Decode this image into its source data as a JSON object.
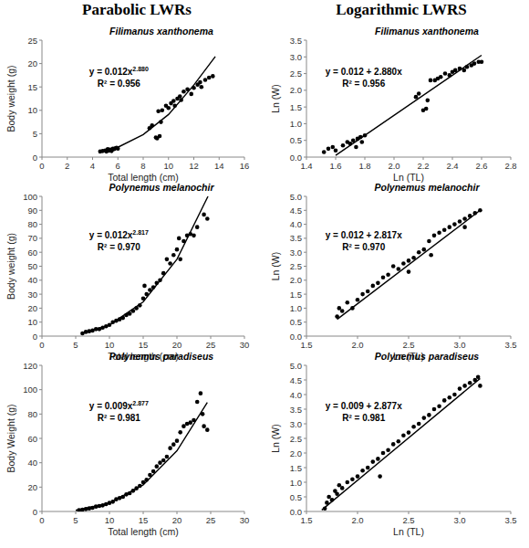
{
  "column_titles": [
    "Parabolic LWRs",
    "Logarithmic LWRS"
  ],
  "chart_data": [
    {
      "type": "scatter",
      "title": "Filimanus xanthonema",
      "x_label": "Total length (cm)",
      "y_label": "Body weight (g)",
      "xlim": [
        0,
        16
      ],
      "ylim": [
        0,
        25
      ],
      "xticks": [
        0,
        2,
        4,
        6,
        8,
        10,
        12,
        14,
        16
      ],
      "yticks": [
        0,
        5,
        10,
        15,
        20,
        25
      ],
      "grid": false,
      "annotations": [
        {
          "text": "y = 0.012x",
          "superscript": "2.880"
        },
        {
          "text": "R² = 0.956"
        }
      ],
      "series": [
        {
          "type": "scatter",
          "color": "#000000",
          "marker": "circle",
          "x": [
            4.6,
            4.8,
            5.0,
            5.1,
            5.2,
            5.3,
            5.4,
            5.5,
            5.6,
            5.7,
            5.8,
            5.9,
            6.0,
            5.5,
            5.2,
            8.5,
            8.7,
            9.0,
            9.1,
            9.3,
            9.2,
            9.5,
            9.4,
            9.8,
            10.0,
            10.2,
            10.4,
            10.5,
            10.7,
            10.9,
            11.0,
            11.2,
            11.5,
            11.8,
            12.0,
            12.3,
            12.5,
            12.6,
            12.9,
            13.2,
            13.5
          ],
          "values": [
            1.2,
            1.3,
            1.4,
            1.2,
            1.5,
            1.4,
            1.6,
            1.5,
            1.8,
            1.7,
            1.9,
            2.0,
            1.8,
            1.3,
            1.7,
            6.2,
            6.8,
            4.2,
            4.0,
            4.5,
            9.8,
            10.0,
            7.5,
            11.0,
            10.5,
            11.5,
            12.0,
            11.0,
            12.5,
            13.0,
            12.2,
            14.0,
            14.5,
            13.5,
            14.8,
            15.5,
            16.0,
            15.0,
            16.5,
            17.0,
            17.3
          ]
        },
        {
          "type": "line",
          "color": "#000000",
          "line_style": "solid",
          "x": [
            4.5,
            6,
            8,
            10,
            12,
            13.7
          ],
          "values": [
            0.9,
            2.1,
            4.8,
            9.1,
            15.4,
            21.5
          ]
        }
      ]
    },
    {
      "type": "scatter",
      "title": "Filimanus xanthonema",
      "x_label": "Ln (TL)",
      "y_label": "Ln (W)",
      "xlim": [
        1.4,
        2.8
      ],
      "ylim": [
        0,
        3.5
      ],
      "xticks": [
        1.4,
        1.6,
        1.8,
        {
          "value": 2,
          "label": "2.0"
        },
        2.2,
        2.4,
        2.6,
        2.8
      ],
      "yticks": [
        {
          "value": 0,
          "label": "0.0"
        },
        0.5,
        {
          "value": 1,
          "label": "1.0"
        },
        1.5,
        {
          "value": 2,
          "label": "2.0"
        },
        2.5,
        {
          "value": 3,
          "label": "3.0"
        },
        3.5
      ],
      "grid": false,
      "annotations": [
        {
          "text": "y = 0.012 + 2.880x"
        },
        {
          "text": "R² = 0.956"
        }
      ],
      "series": [
        {
          "type": "scatter",
          "color": "#000000",
          "marker": "circle",
          "x": [
            1.52,
            1.55,
            1.58,
            1.6,
            1.65,
            1.68,
            1.7,
            1.72,
            1.74,
            1.75,
            1.77,
            1.78,
            1.8,
            2.15,
            2.17,
            2.2,
            2.22,
            2.23,
            2.25,
            2.28,
            2.3,
            2.32,
            2.35,
            2.38,
            2.4,
            2.42,
            2.45,
            2.48,
            2.5,
            2.53,
            2.55,
            2.58,
            2.6
          ],
          "values": [
            0.15,
            0.25,
            0.3,
            0.2,
            0.35,
            0.45,
            0.4,
            0.5,
            0.3,
            0.55,
            0.6,
            0.45,
            0.65,
            1.8,
            1.9,
            1.4,
            1.45,
            1.7,
            2.3,
            2.3,
            2.35,
            2.4,
            2.5,
            2.45,
            2.55,
            2.6,
            2.65,
            2.6,
            2.7,
            2.75,
            2.8,
            2.85,
            2.85
          ]
        },
        {
          "type": "line",
          "color": "#000000",
          "line_style": "solid",
          "x": [
            1.6,
            2.6
          ],
          "values": [
            0.05,
            3.05
          ]
        }
      ]
    },
    {
      "type": "scatter",
      "title": "Polynemus melanochir",
      "x_label": "Total length (cm)",
      "y_label": "Body weight (g)",
      "xlim": [
        0,
        30
      ],
      "ylim": [
        0,
        100
      ],
      "xticks": [
        0,
        5,
        10,
        15,
        20,
        25,
        30
      ],
      "yticks": [
        0,
        10,
        20,
        30,
        40,
        50,
        60,
        70,
        80,
        90,
        100
      ],
      "grid": false,
      "annotations": [
        {
          "text": "y = 0.012x",
          "superscript": "2.817"
        },
        {
          "text": "R² = 0.970"
        }
      ],
      "series": [
        {
          "type": "scatter",
          "color": "#000000",
          "marker": "circle",
          "x": [
            6,
            6.5,
            7,
            7.5,
            8,
            8.5,
            9,
            9.5,
            10,
            10.5,
            11,
            11.5,
            12,
            12.5,
            13,
            13.5,
            14,
            14.5,
            15,
            15.2,
            15.5,
            16,
            16.5,
            17,
            17.5,
            18,
            18.5,
            19,
            19.5,
            20,
            20.3,
            20.5,
            21,
            21.5,
            22,
            22.5,
            23,
            24,
            24.5
          ],
          "values": [
            2,
            3,
            3.5,
            4,
            5,
            5,
            6,
            7,
            8,
            10,
            11,
            12,
            13,
            15,
            16,
            18,
            20,
            22,
            27,
            36,
            30,
            33,
            35,
            38,
            40,
            45,
            55,
            52,
            58,
            62,
            70,
            55,
            68,
            72,
            73,
            72,
            78,
            87,
            84
          ]
        },
        {
          "type": "line",
          "color": "#000000",
          "line_style": "solid",
          "x": [
            6,
            10,
            15,
            20,
            24.6
          ],
          "values": [
            1.9,
            7.9,
            24.5,
            55,
            100
          ]
        }
      ]
    },
    {
      "type": "scatter",
      "title": "Polynemus melanochir",
      "x_label": "Ln (TL)",
      "y_label": "Ln (W)",
      "xlim": [
        1.5,
        3.5
      ],
      "ylim": [
        0,
        5
      ],
      "xticks": [
        1.5,
        {
          "value": 2,
          "label": "2.0"
        },
        2.5,
        {
          "value": 3,
          "label": "3.0"
        },
        3.5
      ],
      "yticks": [
        {
          "value": 0,
          "label": "0.0"
        },
        0.5,
        {
          "value": 1,
          "label": "1.0"
        },
        1.5,
        {
          "value": 2,
          "label": "2.0"
        },
        2.5,
        {
          "value": 3,
          "label": "3.0"
        },
        3.5,
        {
          "value": 4,
          "label": "4.0"
        },
        4.5,
        {
          "value": 5,
          "label": "5.0"
        }
      ],
      "grid": false,
      "annotations": [
        {
          "text": "y = 0.012 + 2.817x"
        },
        {
          "text": "R² = 0.970"
        }
      ],
      "series": [
        {
          "type": "scatter",
          "color": "#000000",
          "marker": "circle",
          "x": [
            1.8,
            1.82,
            1.85,
            1.9,
            1.95,
            2.0,
            2.05,
            2.1,
            2.15,
            2.2,
            2.25,
            2.3,
            2.35,
            2.4,
            2.45,
            2.5,
            2.55,
            2.6,
            2.65,
            2.7,
            2.75,
            2.8,
            2.85,
            2.9,
            2.95,
            3.0,
            3.05,
            3.1,
            3.15,
            3.2,
            2.72,
            2.5,
            3.05
          ],
          "values": [
            0.7,
            1.0,
            0.9,
            1.2,
            1.0,
            1.3,
            1.5,
            1.6,
            1.8,
            1.9,
            2.1,
            2.2,
            2.5,
            2.4,
            2.6,
            2.7,
            2.8,
            3.0,
            3.1,
            3.4,
            3.6,
            3.7,
            3.8,
            3.9,
            4.0,
            4.1,
            4.2,
            4.3,
            4.4,
            4.5,
            2.9,
            2.3,
            3.9
          ]
        },
        {
          "type": "line",
          "color": "#000000",
          "line_style": "solid",
          "x": [
            1.8,
            3.2
          ],
          "values": [
            0.6,
            4.5
          ]
        }
      ]
    },
    {
      "type": "scatter",
      "title": "Polynemus paradiseus",
      "x_label": "Total length (cm)",
      "y_label": "Body Weight (g)",
      "xlim": [
        0,
        30
      ],
      "ylim": [
        0,
        120
      ],
      "xticks": [
        0,
        5,
        10,
        15,
        20,
        25,
        30
      ],
      "yticks": [
        0,
        20,
        40,
        60,
        80,
        100,
        120
      ],
      "grid": false,
      "annotations": [
        {
          "text": "y = 0.009x",
          "superscript": "2.877"
        },
        {
          "text": "R² = 0.981"
        }
      ],
      "series": [
        {
          "type": "scatter",
          "color": "#000000",
          "marker": "circle",
          "x": [
            5.5,
            6,
            6.5,
            7,
            7.5,
            8,
            8.5,
            9,
            9.5,
            10,
            10.5,
            11,
            11.5,
            12,
            12.5,
            13,
            13.5,
            14,
            14.5,
            15,
            15.5,
            16,
            16.5,
            17,
            17.5,
            18,
            18.5,
            19,
            19.5,
            20,
            20.5,
            21,
            21.5,
            22,
            22.5,
            23,
            23.5,
            24,
            24.5,
            23.8
          ],
          "values": [
            1,
            1.5,
            2,
            2.5,
            3,
            4,
            4.5,
            5,
            6,
            7,
            8,
            10,
            11,
            12,
            14,
            15,
            17,
            19,
            21,
            24,
            26,
            30,
            33,
            37,
            40,
            42,
            45,
            52,
            55,
            58,
            65,
            70,
            72,
            73,
            75,
            90,
            97,
            70,
            67,
            80
          ]
        },
        {
          "type": "line",
          "color": "#000000",
          "line_style": "solid",
          "x": [
            5,
            10,
            15,
            20,
            24.5
          ],
          "values": [
            0.9,
            6.8,
            21.8,
            49.8,
            89.5
          ]
        }
      ]
    },
    {
      "type": "scatter",
      "title": "Polynemus paradiseus",
      "x_label": "Ln (TL)",
      "y_label": "Ln (W)",
      "xlim": [
        1.5,
        3.5
      ],
      "ylim": [
        0,
        5
      ],
      "xticks": [
        1.5,
        {
          "value": 2,
          "label": "2.0"
        },
        2.5,
        {
          "value": 3,
          "label": "3.0"
        },
        3.5
      ],
      "yticks": [
        {
          "value": 0,
          "label": "0.0"
        },
        0.5,
        {
          "value": 1,
          "label": "1.0"
        },
        1.5,
        {
          "value": 2,
          "label": "2.0"
        },
        2.5,
        {
          "value": 3,
          "label": "3.0"
        },
        3.5,
        {
          "value": 4,
          "label": "4.0"
        },
        4.5,
        {
          "value": 5,
          "label": "5.0"
        }
      ],
      "grid": false,
      "annotations": [
        {
          "text": "y = 0.009 + 2.877x"
        },
        {
          "text": "R² = 0.981"
        }
      ],
      "series": [
        {
          "type": "scatter",
          "color": "#000000",
          "marker": "circle",
          "x": [
            1.68,
            1.7,
            1.72,
            1.75,
            1.78,
            1.8,
            1.82,
            1.85,
            1.9,
            1.95,
            2.0,
            2.05,
            2.1,
            2.15,
            2.2,
            2.25,
            2.3,
            2.35,
            2.4,
            2.45,
            2.5,
            2.55,
            2.6,
            2.65,
            2.7,
            2.75,
            2.8,
            2.85,
            2.9,
            2.95,
            3.0,
            3.05,
            3.1,
            3.15,
            3.2,
            2.22,
            3.18
          ],
          "values": [
            0.1,
            0.3,
            0.5,
            0.4,
            0.7,
            0.6,
            0.9,
            0.8,
            1.0,
            1.1,
            1.2,
            1.4,
            1.5,
            1.7,
            1.8,
            2.0,
            2.1,
            2.3,
            2.4,
            2.6,
            2.7,
            2.9,
            3.0,
            3.2,
            3.3,
            3.5,
            3.6,
            3.8,
            3.9,
            4.0,
            4.2,
            4.3,
            4.4,
            4.5,
            4.3,
            1.2,
            4.6
          ]
        },
        {
          "type": "line",
          "color": "#000000",
          "line_style": "solid",
          "x": [
            1.65,
            3.2
          ],
          "values": [
            0.05,
            4.55
          ]
        }
      ]
    }
  ]
}
